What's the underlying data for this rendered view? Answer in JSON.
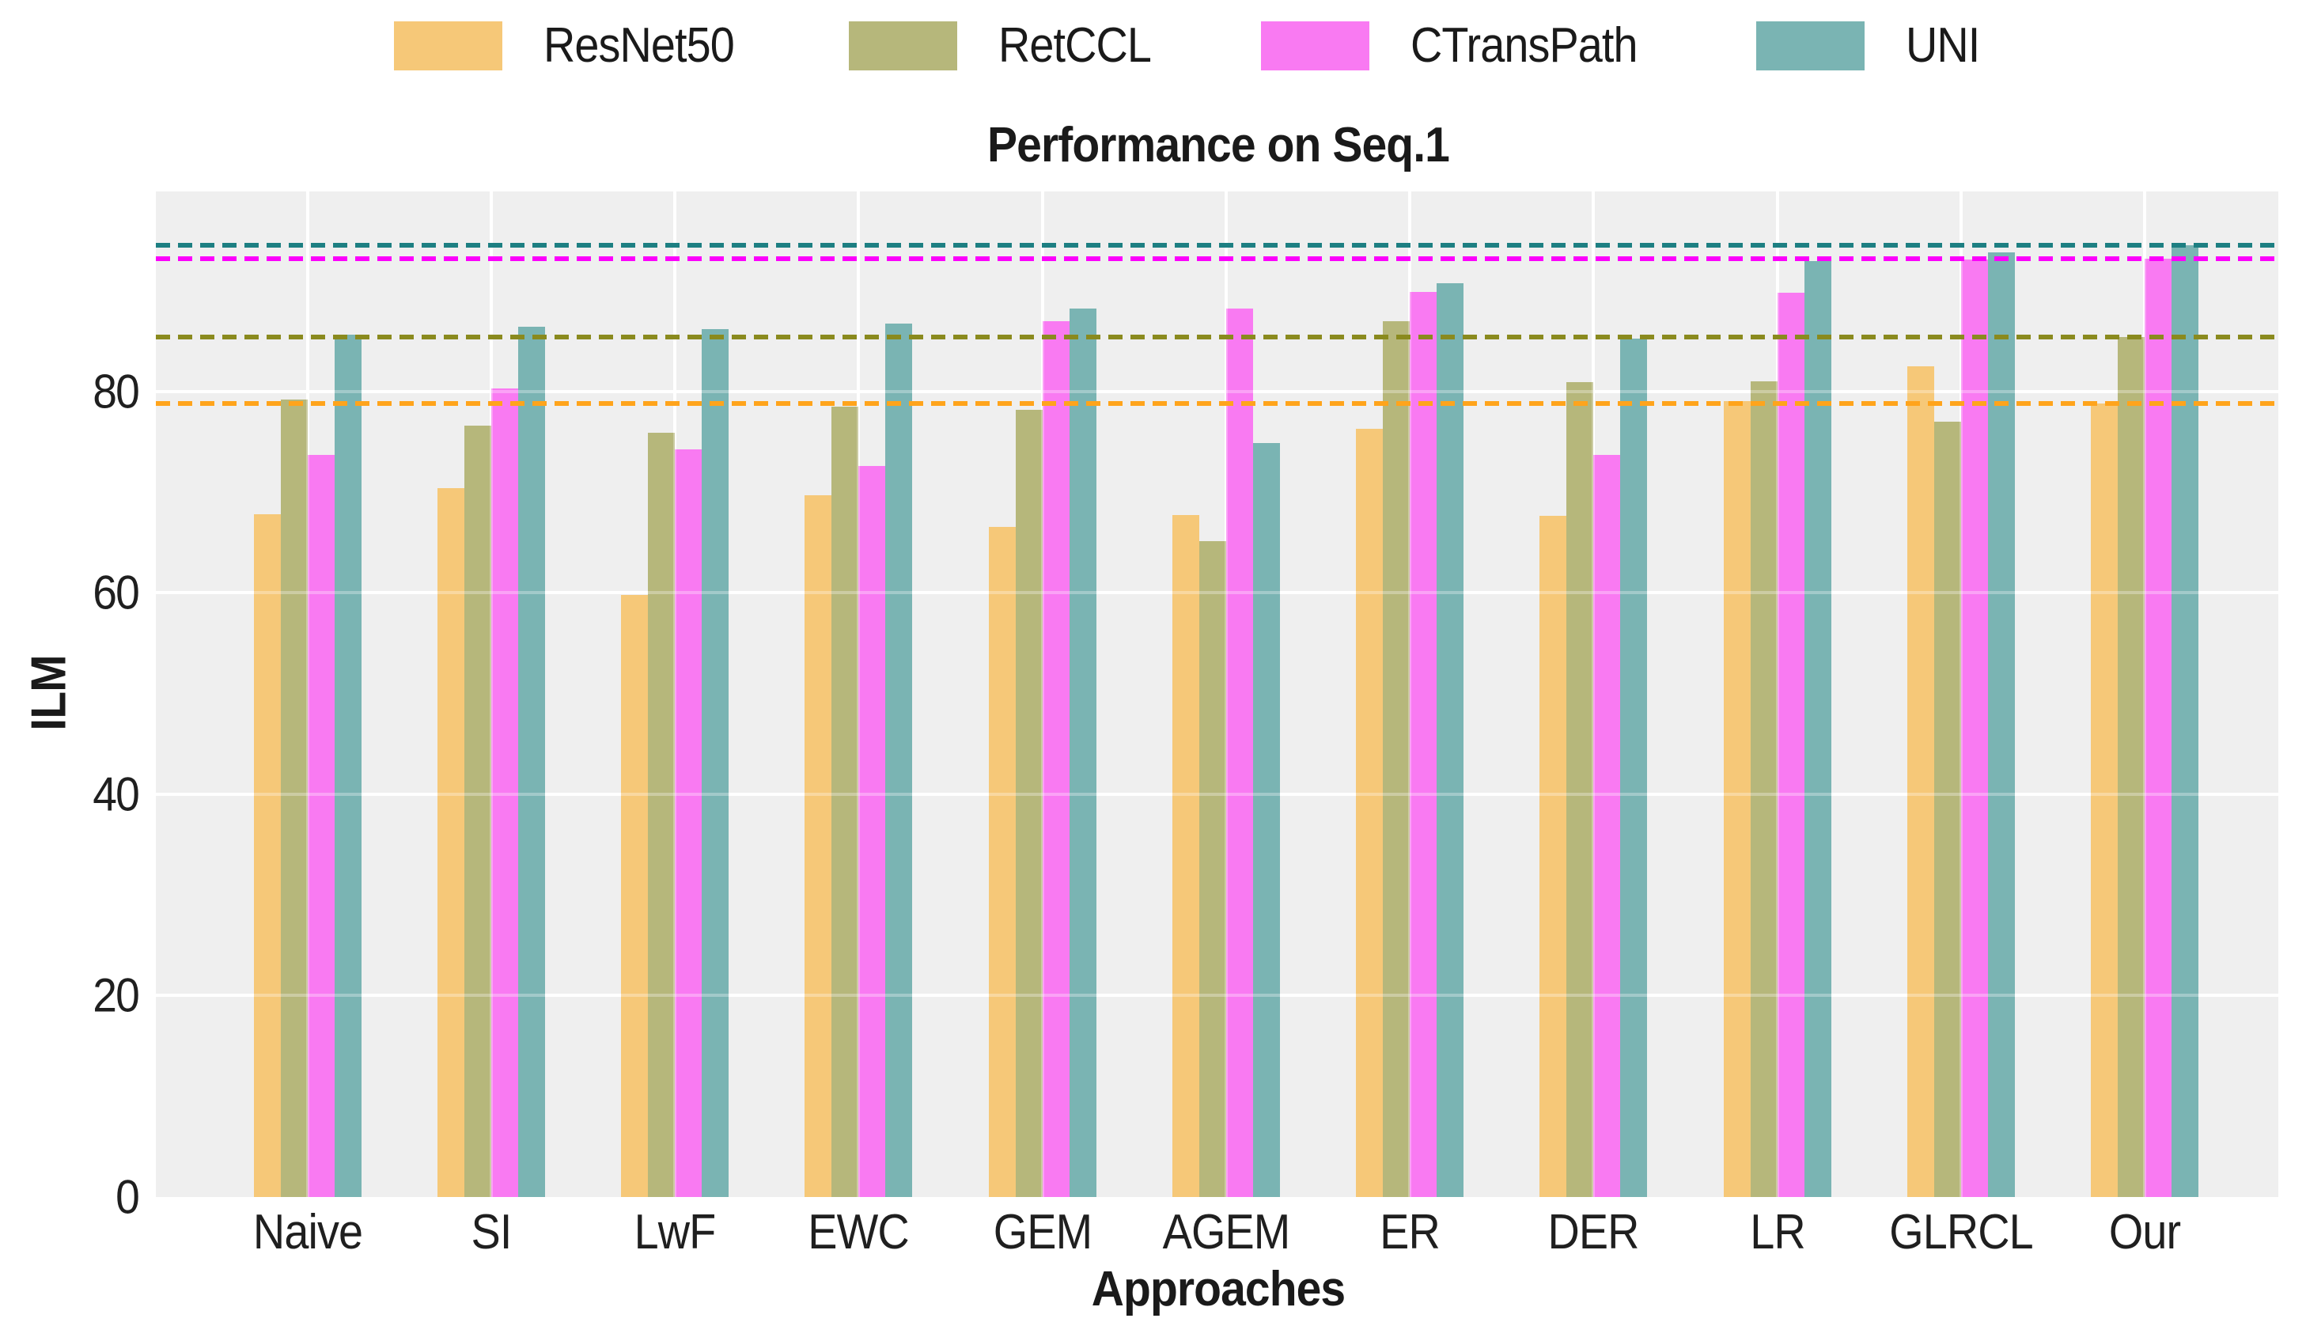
{
  "chart_data": {
    "type": "bar",
    "title": "Performance on Seq.1",
    "xlabel": "Approaches",
    "ylabel": "ILM",
    "ylim": [
      0,
      100
    ],
    "yticks": [
      0,
      20,
      40,
      60,
      80
    ],
    "grid": true,
    "legend_position": "top-center",
    "axes_background": "#efefef",
    "gridline_color": "#ffffff",
    "categories": [
      "Naive",
      "SI",
      "LwF",
      "EWC",
      "GEM",
      "AGEM",
      "ER",
      "DER",
      "LR",
      "GLRCL",
      "Our"
    ],
    "series": [
      {
        "name": "ResNet50",
        "color": "#f6c878",
        "values": [
          67.8,
          70.4,
          59.8,
          69.7,
          66.5,
          67.7,
          76.3,
          67.6,
          79.0,
          82.5,
          78.8
        ]
      },
      {
        "name": "RetCCL",
        "color": "#b6b77b",
        "values": [
          79.2,
          76.6,
          75.9,
          78.5,
          78.2,
          65.1,
          87.0,
          80.9,
          81.0,
          77.0,
          85.4
        ]
      },
      {
        "name": "CTransPath",
        "color": "#f97af2",
        "values": [
          73.7,
          80.3,
          74.2,
          72.6,
          87.0,
          88.2,
          89.9,
          73.7,
          89.8,
          93.1,
          93.2
        ]
      },
      {
        "name": "UNI",
        "color": "#7ab4b3",
        "values": [
          85.6,
          86.4,
          86.2,
          86.7,
          88.2,
          74.9,
          90.7,
          85.2,
          92.9,
          93.8,
          94.5
        ]
      }
    ],
    "reference_lines": [
      {
        "series": "ResNet50",
        "value": 78.8,
        "style": "dashed",
        "color": "#ffa41c"
      },
      {
        "series": "RetCCL",
        "value": 85.4,
        "style": "dashed",
        "color": "#8a8a1e"
      },
      {
        "series": "CTransPath",
        "value": 93.2,
        "style": "dashed",
        "color": "#fb00fb"
      },
      {
        "series": "UNI",
        "value": 94.5,
        "style": "dashed",
        "color": "#1d7f82"
      }
    ]
  }
}
